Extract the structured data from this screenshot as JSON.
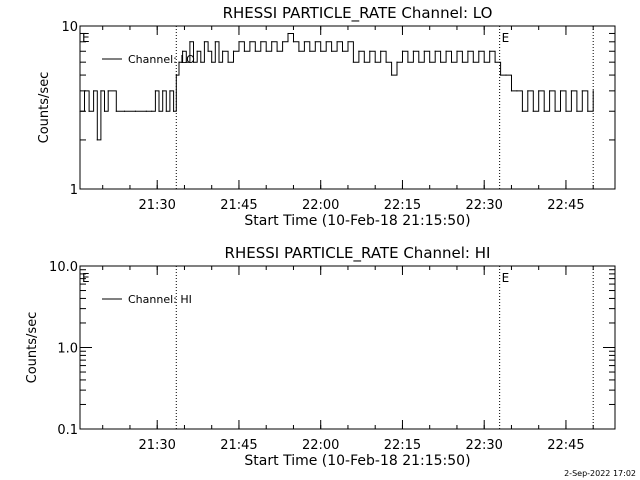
{
  "footer": {
    "timestamp": "2-Sep-2022 17:02"
  },
  "chart_data": [
    {
      "type": "line",
      "title": "RHESSI PARTICLE_RATE Channel: LO",
      "xlabel": "Start Time (10-Feb-18 21:15:50)",
      "ylabel": "Counts/sec",
      "yscale": "log",
      "ylim": [
        1,
        10
      ],
      "y_ticks": [
        "1",
        "10"
      ],
      "xlim": [
        "21:15:50",
        "22:54:00"
      ],
      "x_ticks": [
        "21:30",
        "21:45",
        "22:00",
        "22:15",
        "22:30",
        "22:45"
      ],
      "grid": false,
      "legend": {
        "position": "top-left",
        "entries": [
          "Channel: LO"
        ]
      },
      "event_markers": [
        {
          "x": "21:15:50",
          "label": "E"
        },
        {
          "x": "21:33:30",
          "label": ""
        },
        {
          "x": "22:32:50",
          "label": "E"
        },
        {
          "x": "22:50:00",
          "label": ""
        }
      ],
      "series": [
        {
          "name": "Channel: LO",
          "color": "#000000",
          "x": [
            "21:15:50",
            "21:16:40",
            "21:17:30",
            "21:18:20",
            "21:19:00",
            "21:19:40",
            "21:20:20",
            "21:21:00",
            "21:22:30",
            "21:24:00",
            "21:26:00",
            "21:28:00",
            "21:29:00",
            "21:29:40",
            "21:30:20",
            "21:31:00",
            "21:31:40",
            "21:32:20",
            "21:33:00",
            "21:33:30",
            "21:34:00",
            "21:34:40",
            "21:35:20",
            "21:36:00",
            "21:36:40",
            "21:37:20",
            "21:38:00",
            "21:38:40",
            "21:39:20",
            "21:40:00",
            "21:40:40",
            "21:41:20",
            "21:42:00",
            "21:43:00",
            "21:44:00",
            "21:45:00",
            "21:46:00",
            "21:47:00",
            "21:48:00",
            "21:49:00",
            "21:50:00",
            "21:51:00",
            "21:52:00",
            "21:53:00",
            "21:54:00",
            "21:55:00",
            "21:56:00",
            "21:57:00",
            "21:58:00",
            "21:59:00",
            "22:00:00",
            "22:01:00",
            "22:02:00",
            "22:03:00",
            "22:04:00",
            "22:05:00",
            "22:06:00",
            "22:07:00",
            "22:08:00",
            "22:09:00",
            "22:10:00",
            "22:11:00",
            "22:12:00",
            "22:13:00",
            "22:14:00",
            "22:15:00",
            "22:16:00",
            "22:17:00",
            "22:18:00",
            "22:19:00",
            "22:20:00",
            "22:21:00",
            "22:22:00",
            "22:23:00",
            "22:24:00",
            "22:25:00",
            "22:26:00",
            "22:27:00",
            "22:28:00",
            "22:29:00",
            "22:30:00",
            "22:31:00",
            "22:32:00",
            "22:33:00",
            "22:34:00",
            "22:35:00",
            "22:36:00",
            "22:37:00",
            "22:38:00",
            "22:39:00",
            "22:40:00",
            "22:41:00",
            "22:42:00",
            "22:43:00",
            "22:44:00",
            "22:45:00",
            "22:46:00",
            "22:47:00",
            "22:48:00",
            "22:49:00",
            "22:50:00"
          ],
          "values": [
            3,
            4,
            3,
            4,
            2,
            4,
            3,
            4,
            3,
            3,
            3,
            3,
            3,
            4,
            3,
            4,
            3,
            4,
            3,
            5,
            6,
            7,
            6,
            8,
            6,
            7,
            6,
            8,
            7,
            6,
            8,
            6,
            7,
            6,
            7,
            8,
            7,
            8,
            7,
            8,
            7,
            8,
            7,
            8,
            9,
            8,
            7,
            8,
            7,
            8,
            7,
            8,
            7,
            8,
            7,
            8,
            6,
            7,
            6,
            7,
            6,
            7,
            6,
            5,
            6,
            7,
            6,
            7,
            6,
            7,
            6,
            7,
            6,
            7,
            6,
            7,
            6,
            7,
            6,
            7,
            6,
            7,
            6,
            5,
            5,
            4,
            4,
            3,
            4,
            3,
            4,
            3,
            4,
            3,
            4,
            3,
            4,
            3,
            4,
            3,
            4
          ]
        }
      ]
    },
    {
      "type": "line",
      "title": "RHESSI PARTICLE_RATE Channel: HI",
      "xlabel": "Start Time (10-Feb-18 21:15:50)",
      "ylabel": "Counts/sec",
      "yscale": "log",
      "ylim": [
        0.1,
        10
      ],
      "y_ticks": [
        "0.1",
        "1.0",
        "10.0"
      ],
      "xlim": [
        "21:15:50",
        "22:54:00"
      ],
      "x_ticks": [
        "21:30",
        "21:45",
        "22:00",
        "22:15",
        "22:30",
        "22:45"
      ],
      "grid": false,
      "legend": {
        "position": "top-left",
        "entries": [
          "Channel: HI"
        ]
      },
      "event_markers": [
        {
          "x": "21:15:50",
          "label": "E"
        },
        {
          "x": "21:33:30",
          "label": ""
        },
        {
          "x": "22:32:50",
          "label": "E"
        },
        {
          "x": "22:50:00",
          "label": ""
        }
      ],
      "series": [
        {
          "name": "Channel: HI",
          "color": "#000000",
          "x": [],
          "values": []
        }
      ]
    }
  ]
}
